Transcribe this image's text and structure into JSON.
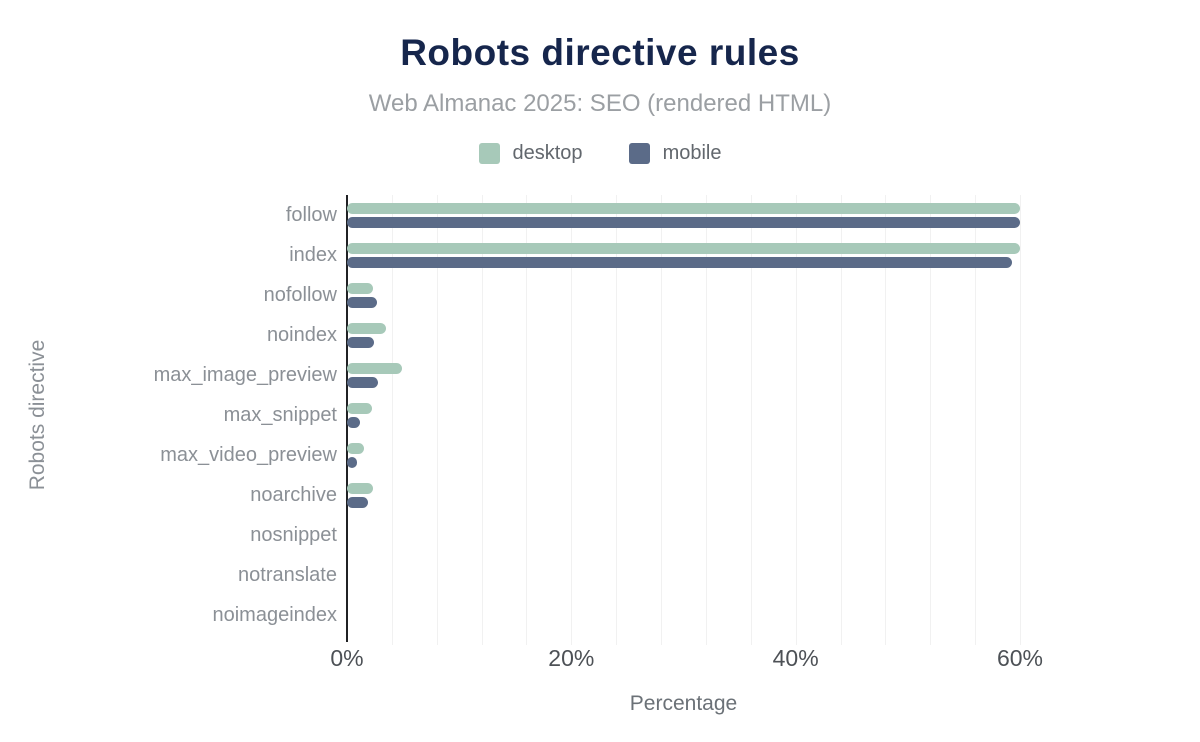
{
  "header": {
    "title": "Robots directive rules",
    "subtitle": "Web Almanac 2025: SEO (rendered HTML)"
  },
  "legend": [
    {
      "label": "desktop",
      "color": "#a7c9b9"
    },
    {
      "label": "mobile",
      "color": "#5b6b88"
    }
  ],
  "chart_data": {
    "type": "bar",
    "orientation": "horizontal",
    "title": "Robots directive rules",
    "subtitle": "Web Almanac 2025: SEO (rendered HTML)",
    "xlabel": "Percentage",
    "ylabel": "Robots directive",
    "categories": [
      "follow",
      "index",
      "nofollow",
      "noindex",
      "max_image_preview",
      "max_snippet",
      "max_video_preview",
      "noarchive",
      "nosnippet",
      "notranslate",
      "noimageindex"
    ],
    "series": [
      {
        "name": "desktop",
        "color": "#a7c9b9",
        "values": [
          60.0,
          60.0,
          2.3,
          3.5,
          4.9,
          2.2,
          1.5,
          2.3,
          0,
          0,
          0
        ]
      },
      {
        "name": "mobile",
        "color": "#5b6b88",
        "values": [
          60.0,
          59.3,
          2.7,
          2.4,
          2.8,
          1.2,
          0.9,
          1.9,
          0,
          0,
          0
        ]
      }
    ],
    "xlim": [
      0,
      60
    ],
    "x_ticks": [
      {
        "label": "0%",
        "value": 0
      },
      {
        "label": "20%",
        "value": 20
      },
      {
        "label": "40%",
        "value": 40
      },
      {
        "label": "60%",
        "value": 60
      }
    ],
    "grid_step": 4,
    "grid": true,
    "legend_position": "top"
  },
  "colors": {
    "title": "#16264c",
    "subtitle": "#9b9fa3",
    "category_label": "#8b9096",
    "tick_label": "#4d5156",
    "axis_line": "#202124",
    "gridline": "#f1f1f1",
    "background": "#ffffff"
  }
}
